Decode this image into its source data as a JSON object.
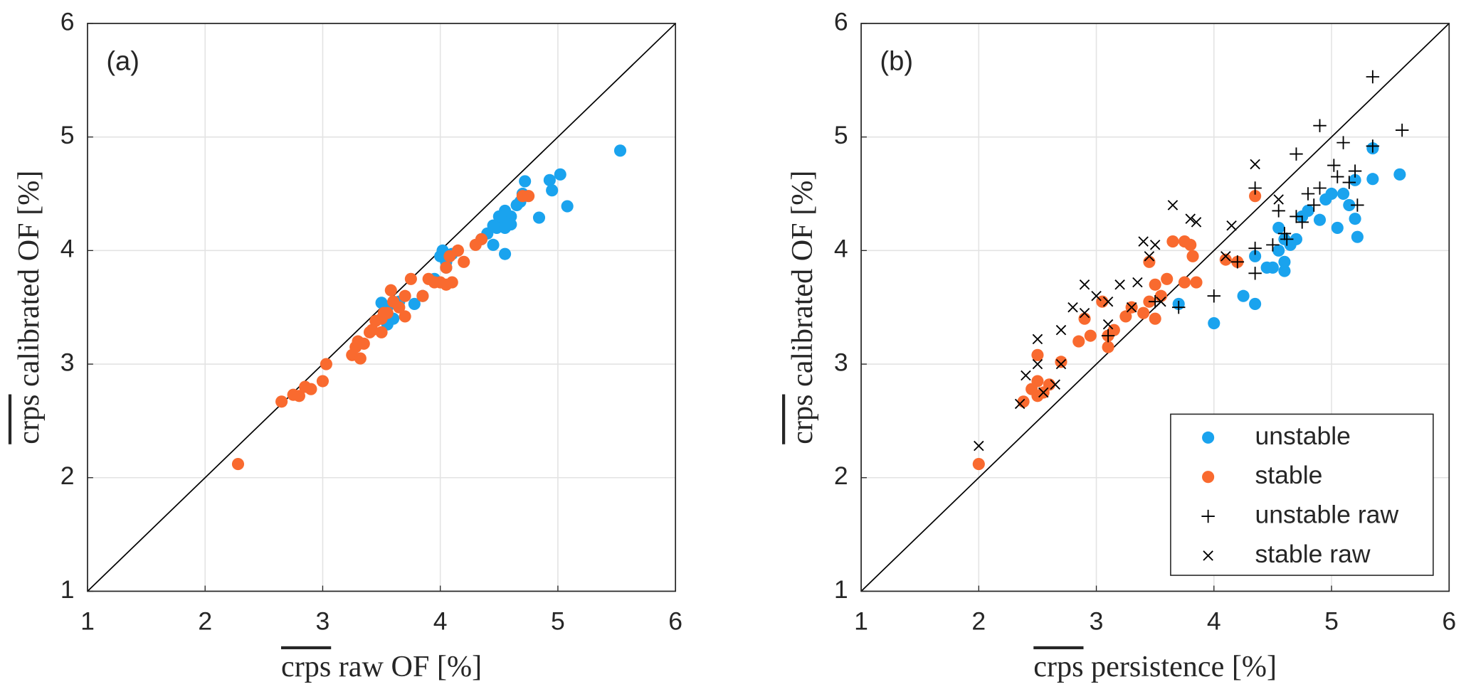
{
  "chart_data": [
    {
      "type": "scatter",
      "panel_label": "(a)",
      "xlabel": {
        "symbol": "crps",
        "text": "raw OF [%]"
      },
      "ylabel": {
        "symbol": "crps",
        "text": "calibrated OF [%]"
      },
      "xlim": [
        1,
        6
      ],
      "ylim": [
        1,
        6
      ],
      "xticks": [
        1,
        2,
        3,
        4,
        5,
        6
      ],
      "yticks": [
        1,
        2,
        3,
        4,
        5,
        6
      ],
      "grid": true,
      "diagonal": true,
      "series": [
        {
          "name": "unstable",
          "color": "#1aa3ee",
          "marker": "o",
          "x": [
            5.53,
            5.08,
            5.02,
            4.93,
            4.95,
            4.84,
            4.72,
            4.7,
            4.68,
            4.65,
            4.6,
            4.55,
            4.52,
            4.5,
            4.48,
            4.45,
            4.4,
            4.35,
            4.55,
            4.6,
            4.55,
            4.45,
            4.1,
            4.05,
            4.02,
            4.0,
            4.05,
            3.95,
            3.85,
            3.78,
            3.55,
            3.5,
            3.6,
            3.55,
            3.65
          ],
          "values": [
            4.88,
            4.39,
            4.67,
            4.62,
            4.53,
            4.29,
            4.61,
            4.5,
            4.43,
            4.4,
            4.3,
            4.35,
            4.25,
            4.3,
            4.2,
            4.22,
            4.15,
            4.1,
            4.2,
            4.23,
            3.97,
            4.05,
            3.97,
            3.9,
            4.0,
            3.95,
            3.85,
            3.75,
            3.6,
            3.53,
            3.5,
            3.54,
            3.4,
            3.35,
            3.55
          ]
        },
        {
          "name": "stable",
          "color": "#f96a2f",
          "marker": "o",
          "x": [
            2.28,
            2.65,
            2.75,
            2.8,
            2.85,
            2.9,
            3.0,
            3.03,
            3.25,
            3.28,
            3.3,
            3.32,
            3.35,
            3.4,
            3.42,
            3.5,
            3.5,
            3.55,
            3.58,
            3.6,
            3.65,
            3.7,
            3.75,
            3.7,
            3.85,
            3.9,
            3.95,
            4.0,
            4.05,
            4.1,
            4.05,
            4.08,
            4.15,
            4.2,
            4.3,
            4.35,
            4.7,
            4.75,
            3.52,
            3.45
          ],
          "values": [
            2.12,
            2.67,
            2.73,
            2.72,
            2.8,
            2.78,
            2.85,
            3.0,
            3.08,
            3.15,
            3.2,
            3.05,
            3.18,
            3.28,
            3.3,
            3.28,
            3.4,
            3.45,
            3.65,
            3.55,
            3.5,
            3.42,
            3.75,
            3.6,
            3.6,
            3.75,
            3.72,
            3.72,
            3.7,
            3.72,
            3.85,
            3.95,
            4.0,
            3.9,
            4.05,
            4.1,
            4.48,
            4.48,
            3.45,
            3.38
          ]
        }
      ]
    },
    {
      "type": "scatter",
      "panel_label": "(b)",
      "xlabel": {
        "symbol": "crps",
        "text": "persistence [%]"
      },
      "ylabel": {
        "symbol": "crps",
        "text": "calibrated OF [%]"
      },
      "xlim": [
        1,
        6
      ],
      "ylim": [
        1,
        6
      ],
      "xticks": [
        1,
        2,
        3,
        4,
        5,
        6
      ],
      "yticks": [
        1,
        2,
        3,
        4,
        5,
        6
      ],
      "grid": true,
      "diagonal": true,
      "legend": "lower right",
      "series": [
        {
          "name": "unstable",
          "color": "#1aa3ee",
          "marker": "o",
          "x": [
            5.35,
            5.58,
            5.35,
            5.2,
            5.1,
            5.15,
            5.2,
            5.22,
            5.05,
            4.9,
            4.95,
            4.8,
            4.75,
            4.7,
            4.6,
            4.55,
            4.55,
            4.6,
            4.5,
            4.6,
            4.45,
            4.35,
            4.35,
            4.25,
            4.0,
            3.7,
            4.65,
            5.0
          ],
          "values": [
            4.9,
            4.67,
            4.63,
            4.62,
            4.5,
            4.4,
            4.28,
            4.12,
            4.2,
            4.27,
            4.45,
            4.35,
            4.3,
            4.1,
            4.1,
            4.2,
            4.0,
            3.9,
            3.85,
            3.82,
            3.85,
            3.95,
            3.53,
            3.6,
            3.36,
            3.53,
            4.05,
            4.5
          ]
        },
        {
          "name": "stable",
          "color": "#f96a2f",
          "marker": "o",
          "x": [
            2.0,
            2.38,
            2.45,
            2.5,
            2.55,
            2.5,
            2.6,
            2.7,
            2.5,
            2.85,
            2.9,
            2.95,
            3.05,
            3.1,
            3.1,
            3.15,
            3.25,
            3.3,
            3.4,
            3.45,
            3.5,
            3.5,
            3.55,
            3.45,
            3.6,
            3.65,
            3.75,
            3.75,
            3.82,
            3.85,
            4.2,
            4.1,
            4.35,
            3.8
          ],
          "values": [
            2.12,
            2.67,
            2.78,
            2.72,
            2.75,
            2.85,
            2.82,
            3.02,
            3.08,
            3.2,
            3.4,
            3.25,
            3.55,
            3.15,
            3.25,
            3.3,
            3.42,
            3.5,
            3.45,
            3.55,
            3.7,
            3.4,
            3.6,
            3.9,
            3.75,
            4.08,
            3.72,
            4.08,
            3.95,
            3.72,
            3.9,
            3.92,
            4.48,
            4.05
          ]
        },
        {
          "name": "unstable raw",
          "color": "#000000",
          "marker": "+",
          "x": [
            5.35,
            5.6,
            4.9,
            5.1,
            5.35,
            4.7,
            5.02,
            5.2,
            5.05,
            5.15,
            4.9,
            4.8,
            4.35,
            5.22,
            4.55,
            4.7,
            4.6,
            4.5,
            4.35,
            4.0,
            4.2,
            3.7,
            4.35,
            3.5,
            3.1,
            4.62,
            4.75,
            4.85
          ],
          "values": [
            5.53,
            5.06,
            5.1,
            4.95,
            4.92,
            4.85,
            4.75,
            4.7,
            4.65,
            4.6,
            4.55,
            4.5,
            4.55,
            4.4,
            4.35,
            4.3,
            4.15,
            4.05,
            4.02,
            3.6,
            3.9,
            3.5,
            3.8,
            3.55,
            3.25,
            4.1,
            4.25,
            4.4
          ]
        },
        {
          "name": "stable raw",
          "color": "#000000",
          "marker": "x",
          "x": [
            2.0,
            2.35,
            2.4,
            2.5,
            2.5,
            2.55,
            2.65,
            2.7,
            2.7,
            2.8,
            2.9,
            3.0,
            3.1,
            3.2,
            3.35,
            3.4,
            3.45,
            3.5,
            3.55,
            3.65,
            3.8,
            3.85,
            4.15,
            4.35,
            4.55,
            3.3,
            3.1,
            4.1,
            2.9
          ],
          "values": [
            2.28,
            2.65,
            2.9,
            3.0,
            3.22,
            2.75,
            2.82,
            3.0,
            3.3,
            3.5,
            3.7,
            3.6,
            3.55,
            3.7,
            3.72,
            4.08,
            3.95,
            4.05,
            3.55,
            4.4,
            4.28,
            4.25,
            4.22,
            4.76,
            4.45,
            3.5,
            3.35,
            3.95,
            3.45
          ]
        }
      ]
    }
  ]
}
